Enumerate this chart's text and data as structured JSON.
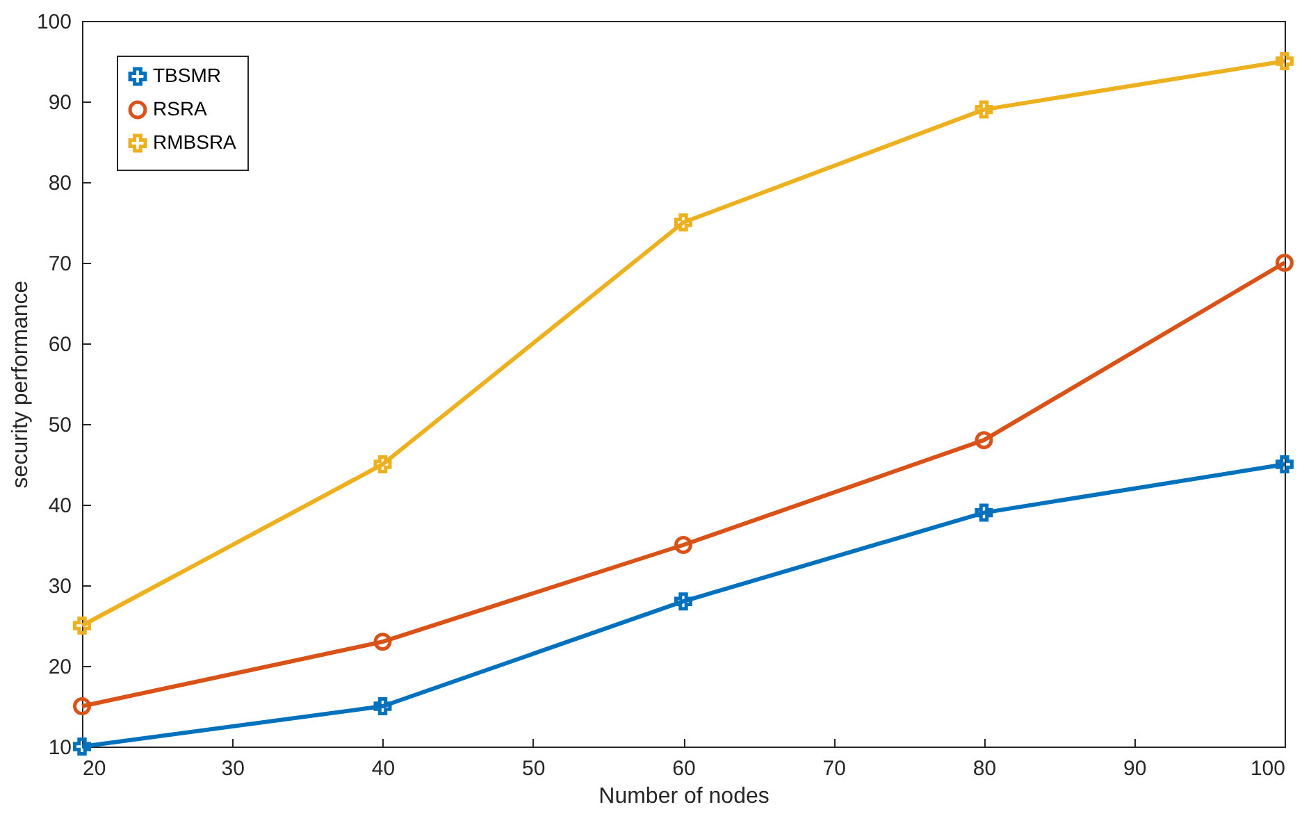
{
  "chart_data": {
    "type": "line",
    "xlabel": "Number of nodes",
    "ylabel": "security performance",
    "x": [
      20,
      40,
      60,
      80,
      100
    ],
    "series": [
      {
        "name": "TBSMR",
        "color": "#0072bd",
        "marker": "cross",
        "values": [
          10,
          15,
          28,
          39,
          45
        ]
      },
      {
        "name": "RSRA",
        "color": "#d95319",
        "marker": "circle",
        "values": [
          15,
          23,
          35,
          48,
          70
        ]
      },
      {
        "name": "RMBSRA",
        "color": "#edb120",
        "marker": "cross",
        "values": [
          25,
          45,
          75,
          89,
          95
        ]
      }
    ],
    "xlim": [
      20,
      100
    ],
    "xticks": [
      20,
      30,
      40,
      50,
      60,
      70,
      80,
      90,
      100
    ],
    "ylim": [
      10,
      100
    ],
    "yticks": [
      10,
      20,
      30,
      40,
      50,
      60,
      70,
      80,
      90,
      100
    ],
    "legend": "top left",
    "grid": false,
    "line_style": "solid"
  }
}
